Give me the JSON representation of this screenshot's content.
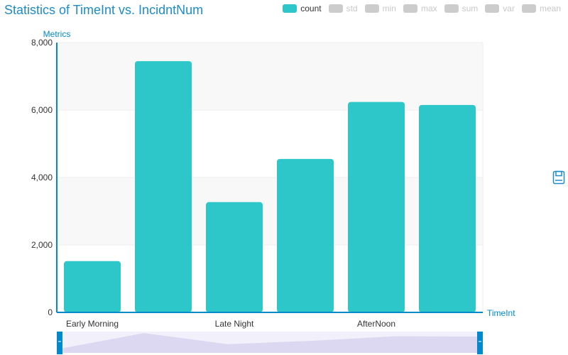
{
  "title": "Statistics of TimeInt vs. IncidntNum",
  "legend": [
    {
      "label": "count",
      "active": true,
      "color": "#2ec7c9"
    },
    {
      "label": "std",
      "active": false,
      "color": "#cccccc"
    },
    {
      "label": "min",
      "active": false,
      "color": "#cccccc"
    },
    {
      "label": "max",
      "active": false,
      "color": "#cccccc"
    },
    {
      "label": "sum",
      "active": false,
      "color": "#cccccc"
    },
    {
      "label": "var",
      "active": false,
      "color": "#cccccc"
    },
    {
      "label": "mean",
      "active": false,
      "color": "#cccccc"
    }
  ],
  "toolbox": {
    "save_icon": "save-icon"
  },
  "chart_data": {
    "type": "bar",
    "title": "Statistics of TimeInt vs. IncidntNum",
    "xlabel": "TimeInt",
    "ylabel": "Metrics",
    "categories": [
      "Early Morning",
      "",
      "Late Night",
      "",
      "AfterNoon",
      ""
    ],
    "series": [
      {
        "name": "count",
        "values": [
          1520,
          7450,
          3270,
          4550,
          6240,
          6150
        ]
      }
    ],
    "ylim": [
      0,
      8000
    ],
    "yticks": [
      0,
      2000,
      4000,
      6000,
      8000
    ],
    "ytick_labels": [
      "0",
      "2,000",
      "4,000",
      "6,000",
      "8,000"
    ],
    "grid": true,
    "legend_position": "top-right",
    "colors": {
      "bar": "#2ec7c9",
      "axis": "#008acd",
      "grid": "#eeeeee",
      "band": "#f8f8f8",
      "zoom_handle": "#008acd",
      "zoom_fill": "#e9e6f8"
    }
  }
}
